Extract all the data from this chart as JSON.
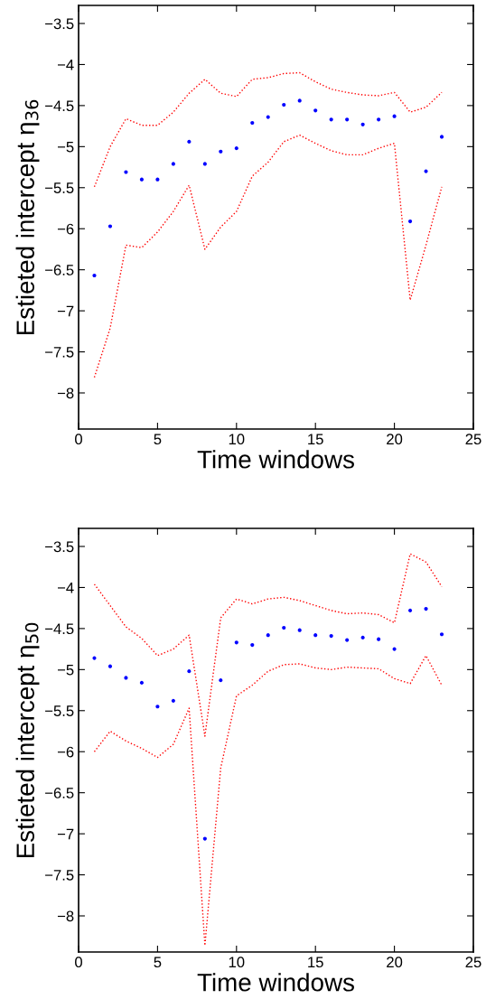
{
  "chart_data": [
    {
      "type": "scatter",
      "xlabel": "Time windows",
      "ylabel": "Estieted intercept η$_{36}$",
      "x": [
        1,
        2,
        3,
        4,
        5,
        6,
        7,
        8,
        9,
        10,
        11,
        12,
        13,
        14,
        15,
        16,
        17,
        18,
        19,
        20,
        21,
        22,
        23
      ],
      "xlim": [
        0,
        25
      ],
      "xticks": [
        0,
        5,
        10,
        15,
        20,
        25
      ],
      "ylim": [
        -8.44,
        -3.28
      ],
      "yticks": [
        -8,
        -7.5,
        -7,
        -6.5,
        -6,
        -5.5,
        -5,
        -4.5,
        -4,
        -3.5
      ],
      "grid": false,
      "series": [
        {
          "type": "line",
          "color": "#ff0000",
          "line_style": "dotted",
          "marker": "none",
          "values": [
            -5.49,
            -5.0,
            -4.66,
            -4.74,
            -4.74,
            -4.58,
            -4.35,
            -4.18,
            -4.35,
            -4.39,
            -4.18,
            -4.16,
            -4.11,
            -4.1,
            -4.21,
            -4.3,
            -4.34,
            -4.37,
            -4.38,
            -4.34,
            -4.58,
            -4.52,
            -4.34
          ]
        },
        {
          "type": "line",
          "color": "#ff0000",
          "line_style": "dotted",
          "marker": "none",
          "values": [
            -7.81,
            -7.21,
            -6.2,
            -6.23,
            -6.04,
            -5.79,
            -5.47,
            -6.25,
            -5.98,
            -5.79,
            -5.36,
            -5.19,
            -4.94,
            -4.86,
            -4.96,
            -5.05,
            -5.1,
            -5.1,
            -5.02,
            -4.96,
            -6.87,
            -6.2,
            -5.49
          ]
        },
        {
          "color": "#0000ff",
          "marker": "circle",
          "values": [
            -6.57,
            -5.97,
            -5.31,
            -5.4,
            -5.4,
            -5.21,
            -4.94,
            -5.21,
            -5.06,
            -5.02,
            -4.71,
            -4.64,
            -4.49,
            -4.44,
            -4.56,
            -4.67,
            -4.67,
            -4.73,
            -4.67,
            -4.63,
            -5.91,
            -5.3,
            -4.88
          ]
        }
      ]
    },
    {
      "type": "scatter",
      "xlabel": "Time windows",
      "ylabel": "Estieted intercept η$_{50}$",
      "x": [
        1,
        2,
        3,
        4,
        5,
        6,
        7,
        8,
        9,
        10,
        11,
        12,
        13,
        14,
        15,
        16,
        17,
        18,
        19,
        20,
        21,
        22,
        23
      ],
      "xlim": [
        0,
        25
      ],
      "xticks": [
        0,
        5,
        10,
        15,
        20,
        25
      ],
      "ylim": [
        -8.44,
        -3.28
      ],
      "yticks": [
        -8,
        -7.5,
        -7,
        -6.5,
        -6,
        -5.5,
        -5,
        -4.5,
        -4,
        -3.5
      ],
      "grid": false,
      "series": [
        {
          "type": "line",
          "color": "#ff0000",
          "line_style": "dotted",
          "marker": "none",
          "values": [
            -3.96,
            -4.22,
            -4.48,
            -4.62,
            -4.83,
            -4.75,
            -4.58,
            -5.81,
            -4.37,
            -4.14,
            -4.2,
            -4.14,
            -4.12,
            -4.16,
            -4.22,
            -4.28,
            -4.32,
            -4.31,
            -4.33,
            -4.43,
            -3.59,
            -3.69,
            -3.99
          ]
        },
        {
          "type": "line",
          "color": "#ff0000",
          "line_style": "dotted",
          "marker": "none",
          "values": [
            -6.0,
            -5.75,
            -5.87,
            -5.96,
            -6.07,
            -5.91,
            -5.47,
            -8.36,
            -6.2,
            -5.32,
            -5.19,
            -5.02,
            -4.94,
            -4.93,
            -4.98,
            -5.0,
            -4.97,
            -4.98,
            -4.99,
            -5.11,
            -5.17,
            -4.83,
            -5.19
          ]
        },
        {
          "color": "#0000ff",
          "marker": "circle",
          "values": [
            -4.86,
            -4.96,
            -5.1,
            -5.16,
            -5.45,
            -5.38,
            -5.02,
            -7.06,
            -5.13,
            -4.67,
            -4.7,
            -4.58,
            -4.49,
            -4.52,
            -4.58,
            -4.59,
            -4.64,
            -4.61,
            -4.63,
            -4.75,
            -4.28,
            -4.26,
            -4.57
          ]
        }
      ]
    }
  ]
}
